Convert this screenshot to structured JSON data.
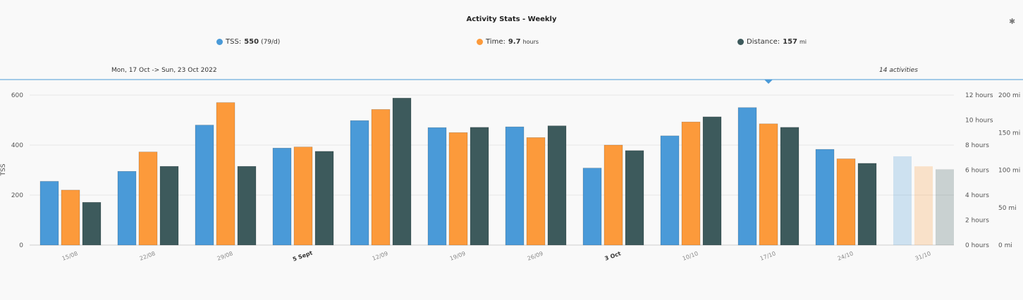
{
  "title": "Activity Stats - Weekly",
  "gear_icon": "gear-icon",
  "legend": [
    {
      "label": "TSS:",
      "value": "550",
      "unit": "(79/d)",
      "color": "#4a9ad8"
    },
    {
      "label": "Time:",
      "value": "9.7",
      "unit": "hours",
      "color": "#fc9a3b"
    },
    {
      "label": "Distance:",
      "value": "157",
      "unit": "mi",
      "color": "#3d5a5c"
    }
  ],
  "range_label": "Mon, 17 Oct -> Sun, 23 Oct 2022",
  "count_label": "14 activities",
  "colors": {
    "tss": "#4a9ad8",
    "time": "#fc9a3b",
    "distance": "#3d5a5c",
    "selection_line": "#4a9ad8",
    "grid": "#e6e6e6"
  },
  "chart_data": {
    "type": "bar",
    "title": "Activity Stats - Weekly",
    "categories": [
      "15/08",
      "22/08",
      "29/08",
      "5 Sept",
      "12/09",
      "19/09",
      "26/09",
      "3 Oct",
      "10/10",
      "17/10",
      "24/10",
      "31/10"
    ],
    "bold_categories": [
      "5 Sept",
      "3 Oct"
    ],
    "faded_categories": [
      "31/10"
    ],
    "selected_category": "17/10",
    "series": [
      {
        "name": "TSS",
        "axis": "left",
        "unit": "",
        "values": [
          255,
          295,
          480,
          388,
          498,
          470,
          473,
          308,
          437,
          550,
          383,
          355
        ]
      },
      {
        "name": "Time",
        "axis": "right1",
        "unit": "hours",
        "values": [
          4.4,
          7.45,
          11.4,
          7.85,
          10.85,
          9.0,
          8.6,
          8.0,
          9.85,
          9.7,
          6.9,
          6.3
        ]
      },
      {
        "name": "Distance",
        "axis": "right2",
        "unit": "mi",
        "values": [
          57,
          105,
          105,
          125,
          196,
          157,
          159,
          126,
          171,
          157,
          109,
          101
        ]
      }
    ],
    "axes": {
      "left": {
        "label": "TSS",
        "ylim": [
          0,
          600
        ],
        "ticks": [
          "0",
          "200",
          "400",
          "600"
        ]
      },
      "right1": {
        "ylim": [
          0,
          12
        ],
        "ticks": [
          "0 hours",
          "2 hours",
          "4 hours",
          "6 hours",
          "8 hours",
          "10 hours",
          "12 hours"
        ]
      },
      "right2": {
        "ylim": [
          0,
          200
        ],
        "ticks": [
          "0 mi",
          "50 mi",
          "100 mi",
          "150 mi",
          "200 mi"
        ]
      }
    },
    "grid": true,
    "legend_position": "top"
  }
}
